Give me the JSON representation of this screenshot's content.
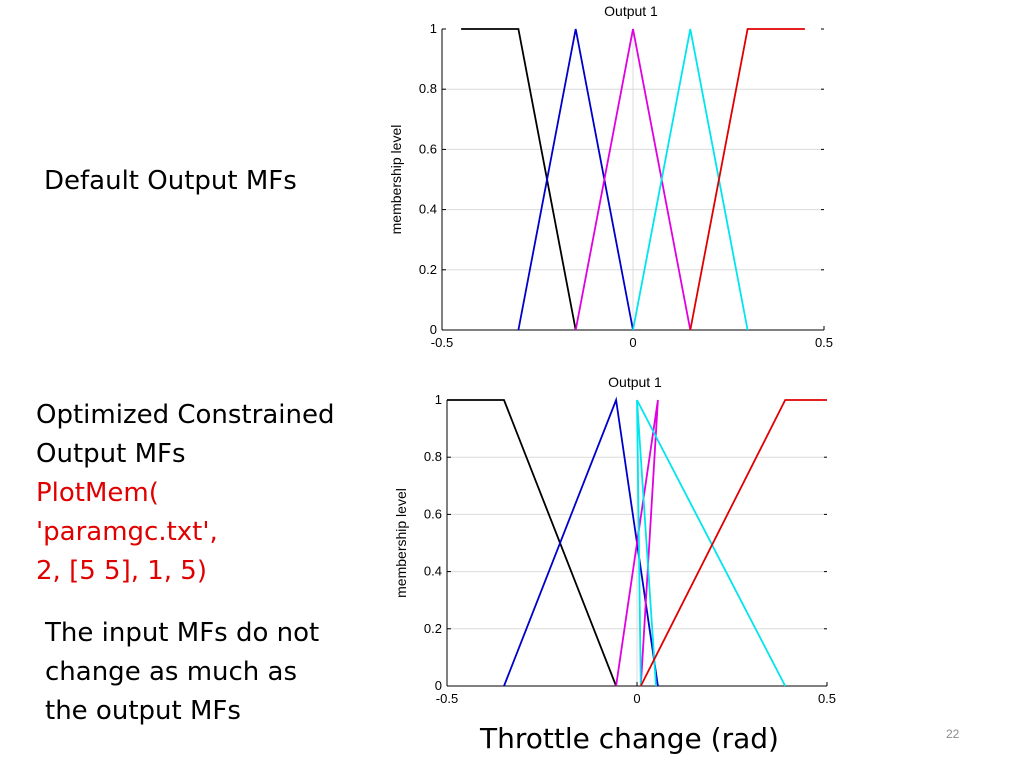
{
  "slide": {
    "label_default": [
      "Default Output MFs"
    ],
    "label_optimized": [
      "Optimized Constrained",
      "Output MFs"
    ],
    "command_lines": [
      "PlotMem(",
      "'paramgc.txt',",
      "2, [5 5], 1, 5)"
    ],
    "note_lines": [
      "The input MFs do not",
      "change as much as",
      "the output MFs"
    ],
    "x_caption": "Throttle change (rad)",
    "slide_number": "22",
    "command_color": "#e00000"
  },
  "chart_data": [
    {
      "type": "line",
      "title": "Output 1",
      "xlabel": "",
      "ylabel": "membership level",
      "xlim": [
        -0.5,
        0.5
      ],
      "ylim": [
        0,
        1
      ],
      "x_ticks": [
        "-0.5",
        "0",
        "0.5"
      ],
      "y_ticks": [
        "0",
        "0.2",
        "0.4",
        "0.6",
        "0.8",
        "1"
      ],
      "grid": true,
      "series": [
        {
          "color": "#000000",
          "points": [
            [
              -0.45,
              1
            ],
            [
              -0.3,
              1
            ],
            [
              -0.15,
              0
            ]
          ]
        },
        {
          "color": "#0000cc",
          "points": [
            [
              -0.3,
              0
            ],
            [
              -0.15,
              1
            ],
            [
              0,
              0
            ]
          ]
        },
        {
          "color": "#e000e0",
          "points": [
            [
              -0.15,
              0
            ],
            [
              0,
              1
            ],
            [
              0.15,
              0
            ]
          ]
        },
        {
          "color": "#00e5ee",
          "points": [
            [
              0,
              0
            ],
            [
              0.15,
              1
            ],
            [
              0.3,
              0
            ]
          ]
        },
        {
          "color": "#e00000",
          "points": [
            [
              0.15,
              0
            ],
            [
              0.3,
              1
            ],
            [
              0.45,
              1
            ]
          ]
        }
      ]
    },
    {
      "type": "line",
      "title": "Output 1",
      "xlabel": "",
      "ylabel": "membership level",
      "xlim": [
        -0.5,
        0.5
      ],
      "ylim": [
        0,
        1
      ],
      "x_ticks": [
        "-0.5",
        "0",
        "0.5"
      ],
      "y_ticks": [
        "0",
        "0.2",
        "0.4",
        "0.6",
        "0.8",
        "1"
      ],
      "grid": true,
      "series": [
        {
          "color": "#000000",
          "points": [
            [
              -0.5,
              1
            ],
            [
              -0.35,
              1
            ],
            [
              -0.055,
              0
            ]
          ]
        },
        {
          "color": "#0000cc",
          "points": [
            [
              -0.35,
              0
            ],
            [
              -0.055,
              1
            ],
            [
              0.055,
              0
            ]
          ]
        },
        {
          "color": "#e000e0",
          "points": [
            [
              -0.055,
              0
            ],
            [
              0.055,
              1
            ],
            [
              0.01,
              0
            ]
          ]
        },
        {
          "color": "#00e5ee",
          "points": [
            [
              0.01,
              0
            ],
            [
              0.0,
              1
            ],
            [
              0.05,
              0
            ]
          ]
        },
        {
          "color": "#00e5ee",
          "points": [
            [
              0.0,
              1
            ],
            [
              0.39,
              0
            ]
          ]
        },
        {
          "color": "#e00000",
          "points": [
            [
              0.01,
              0
            ],
            [
              0.39,
              1
            ],
            [
              0.5,
              1
            ]
          ]
        }
      ]
    }
  ]
}
